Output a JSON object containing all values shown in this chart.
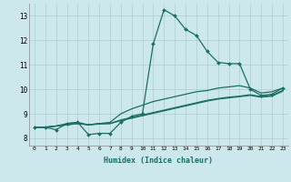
{
  "xlabel": "Humidex (Indice chaleur)",
  "ylabel": "",
  "xlim": [
    -0.5,
    23.5
  ],
  "ylim": [
    7.7,
    13.5
  ],
  "xticks": [
    0,
    1,
    2,
    3,
    4,
    5,
    6,
    7,
    8,
    9,
    10,
    11,
    12,
    13,
    14,
    15,
    16,
    17,
    18,
    19,
    20,
    21,
    22,
    23
  ],
  "yticks": [
    8,
    9,
    10,
    11,
    12,
    13
  ],
  "bg_color": "#cde8ec",
  "grid_color": "#aecdd2",
  "line_color": "#1a6e64",
  "line1": [
    8.45,
    8.45,
    8.35,
    8.6,
    8.65,
    8.15,
    8.2,
    8.2,
    8.65,
    8.9,
    9.0,
    11.85,
    13.25,
    13.0,
    12.45,
    12.2,
    11.55,
    11.1,
    11.05,
    11.05,
    10.0,
    9.75,
    9.8,
    10.05
  ],
  "line2": [
    8.45,
    8.45,
    8.5,
    8.6,
    8.65,
    8.55,
    8.6,
    8.65,
    9.0,
    9.2,
    9.35,
    9.5,
    9.6,
    9.7,
    9.8,
    9.9,
    9.95,
    10.05,
    10.1,
    10.15,
    10.05,
    9.85,
    9.9,
    10.05
  ],
  "line3": [
    8.45,
    8.45,
    8.5,
    8.55,
    8.6,
    8.55,
    8.6,
    8.6,
    8.75,
    8.85,
    8.95,
    9.05,
    9.15,
    9.25,
    9.35,
    9.45,
    9.55,
    9.62,
    9.68,
    9.72,
    9.78,
    9.7,
    9.75,
    9.95
  ],
  "line4": [
    8.45,
    8.45,
    8.5,
    8.55,
    8.6,
    8.55,
    8.58,
    8.6,
    8.72,
    8.82,
    8.92,
    9.02,
    9.12,
    9.22,
    9.32,
    9.42,
    9.52,
    9.6,
    9.65,
    9.7,
    9.75,
    9.68,
    9.72,
    9.92
  ]
}
